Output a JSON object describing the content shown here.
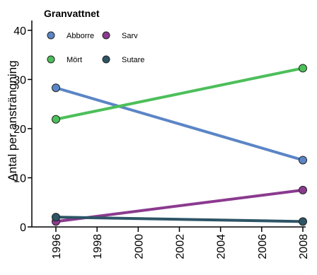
{
  "chart_data": {
    "type": "line",
    "title": "Granvattnet",
    "xlabel": "",
    "ylabel": "Antal per ansträngning",
    "x": [
      1996,
      2008
    ],
    "xticks": [
      "1996",
      "1998",
      "2000",
      "2002",
      "2004",
      "2006",
      "2008"
    ],
    "xlim": [
      1996,
      2008
    ],
    "yticks": [
      "0",
      "10",
      "20",
      "30",
      "40"
    ],
    "ylim": [
      0,
      42
    ],
    "grid": false,
    "legend_position": "top-left",
    "series": [
      {
        "name": "Abborre",
        "values": [
          28.3,
          13.6
        ],
        "color": "#5b85c6"
      },
      {
        "name": "Sarv",
        "values": [
          1.1,
          7.5
        ],
        "color": "#8b3a8f"
      },
      {
        "name": "Mört",
        "values": [
          21.9,
          32.3
        ],
        "color": "#4cbf5a"
      },
      {
        "name": "Sutare",
        "values": [
          2.0,
          1.1
        ],
        "color": "#2d5566"
      }
    ]
  }
}
